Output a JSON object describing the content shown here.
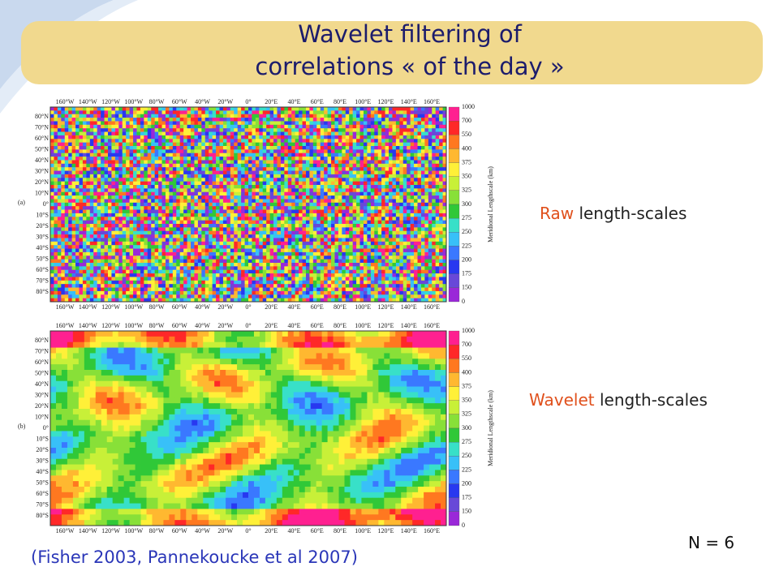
{
  "title": [
    "Wavelet filtering of",
    "correlations « of the day »"
  ],
  "panels": [
    {
      "label": "(a)",
      "caption_highlight": "Raw",
      "caption_rest": "length-scales"
    },
    {
      "label": "(b)",
      "caption_highlight": "Wavelet",
      "caption_rest": "length-scales"
    }
  ],
  "map": {
    "lon_labels": [
      "160°W",
      "140°W",
      "120°W",
      "100°W",
      "80°W",
      "60°W",
      "40°W",
      "20°W",
      "0°",
      "20°E",
      "40°E",
      "60°E",
      "80°E",
      "100°E",
      "120°E",
      "140°E",
      "160°E"
    ],
    "lat_labels": [
      "80°N",
      "70°N",
      "60°N",
      "50°N",
      "40°N",
      "30°N",
      "20°N",
      "10°N",
      "0°",
      "10°S",
      "20°S",
      "30°S",
      "40°S",
      "50°S",
      "60°S",
      "70°S",
      "80°S"
    ],
    "colorbar_ticks": [
      "1000",
      "700",
      "550",
      "400",
      "375",
      "350",
      "325",
      "300",
      "275",
      "250",
      "225",
      "200",
      "175",
      "150",
      "0"
    ],
    "colorbar_label": "Meridional Lengthscale (km)"
  },
  "citation": "(Fisher 2003, Pannekoucke et al 2007)",
  "note": "N = 6"
}
